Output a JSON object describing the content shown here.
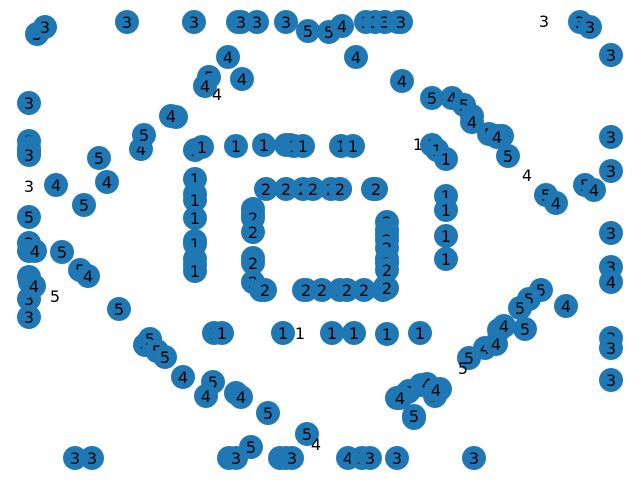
{
  "colors": {
    "node_fill": "#1f77b4",
    "label": "#000000",
    "background": "#ffffff"
  },
  "graph": {
    "type": "network",
    "nodes": [
      {
        "label": "3",
        "type": "node"
      },
      {
        "label": "3",
        "type": "node"
      },
      {
        "label": "3",
        "type": "node"
      },
      {
        "label": "3",
        "type": "node"
      },
      {
        "label": "3",
        "type": "node"
      },
      {
        "label": "3",
        "type": "node"
      },
      {
        "label": "3",
        "type": "node"
      },
      {
        "label": "3",
        "type": "node"
      },
      {
        "label": "3",
        "type": "node"
      },
      {
        "label": "3",
        "type": "node"
      },
      {
        "label": "3",
        "type": "node"
      },
      {
        "label": "3",
        "type": "node"
      },
      {
        "label": "3",
        "type": "node"
      },
      {
        "label": "3",
        "type": "text"
      },
      {
        "label": "3",
        "type": "node"
      },
      {
        "label": "3",
        "type": "node"
      },
      {
        "label": "5",
        "type": "node"
      },
      {
        "label": "5",
        "type": "node"
      },
      {
        "label": "4",
        "type": "node"
      },
      {
        "label": "3",
        "type": "node"
      },
      {
        "label": "4",
        "type": "node"
      },
      {
        "label": "4",
        "type": "node"
      },
      {
        "label": "5",
        "type": "node"
      },
      {
        "label": "4",
        "type": "node"
      },
      {
        "label": "4",
        "type": "node"
      },
      {
        "label": "4",
        "type": "text"
      },
      {
        "label": "4",
        "type": "node"
      },
      {
        "label": "3",
        "type": "node"
      },
      {
        "label": "5",
        "type": "node"
      },
      {
        "label": "4",
        "type": "node"
      },
      {
        "label": "5",
        "type": "node"
      },
      {
        "label": "4",
        "type": "node"
      },
      {
        "label": "4",
        "type": "node"
      },
      {
        "label": "5",
        "type": "node"
      },
      {
        "label": "5",
        "type": "node"
      },
      {
        "label": "5",
        "type": "node"
      },
      {
        "label": "4",
        "type": "node"
      },
      {
        "label": "4",
        "type": "node"
      },
      {
        "label": "4",
        "type": "node"
      },
      {
        "label": "5",
        "type": "node"
      },
      {
        "label": "4",
        "type": "node"
      },
      {
        "label": "5",
        "type": "node"
      },
      {
        "label": "3",
        "type": "node"
      },
      {
        "label": "3",
        "type": "node"
      },
      {
        "label": "3",
        "type": "node"
      },
      {
        "label": "3",
        "type": "node"
      },
      {
        "label": "3",
        "type": "node"
      },
      {
        "label": "3",
        "type": "node"
      },
      {
        "label": "3",
        "type": "node"
      },
      {
        "label": "1",
        "type": "node"
      },
      {
        "label": "1",
        "type": "node"
      },
      {
        "label": "1",
        "type": "node"
      },
      {
        "label": "1",
        "type": "node"
      },
      {
        "label": "1",
        "type": "node"
      },
      {
        "label": "1",
        "type": "node"
      },
      {
        "label": "1",
        "type": "node"
      },
      {
        "label": "1",
        "type": "node"
      },
      {
        "label": "1",
        "type": "node"
      },
      {
        "label": "1",
        "type": "node"
      },
      {
        "label": "1",
        "type": "text"
      },
      {
        "label": "1",
        "type": "node"
      },
      {
        "label": "1",
        "type": "node"
      },
      {
        "label": "1",
        "type": "node"
      },
      {
        "label": "3",
        "type": "text"
      },
      {
        "label": "4",
        "type": "node"
      },
      {
        "label": "4",
        "type": "node"
      },
      {
        "label": "5",
        "type": "node"
      },
      {
        "label": "5",
        "type": "node"
      },
      {
        "label": "4",
        "type": "text"
      },
      {
        "label": "5",
        "type": "node"
      },
      {
        "label": "4",
        "type": "node"
      },
      {
        "label": "5",
        "type": "node"
      },
      {
        "label": "4",
        "type": "node"
      },
      {
        "label": "5",
        "type": "node"
      },
      {
        "label": "2",
        "type": "node"
      },
      {
        "label": "2",
        "type": "node"
      },
      {
        "label": "2",
        "type": "node"
      },
      {
        "label": "2",
        "type": "node"
      },
      {
        "label": "2",
        "type": "node"
      },
      {
        "label": "2",
        "type": "node"
      },
      {
        "label": "2",
        "type": "node"
      },
      {
        "label": "2",
        "type": "node"
      },
      {
        "label": "2",
        "type": "node"
      },
      {
        "label": "1",
        "type": "node"
      },
      {
        "label": "1",
        "type": "node"
      },
      {
        "label": "1",
        "type": "node"
      },
      {
        "label": "1",
        "type": "node"
      },
      {
        "label": "1",
        "type": "node"
      },
      {
        "label": "1",
        "type": "node"
      },
      {
        "label": "1",
        "type": "node"
      },
      {
        "label": "1",
        "type": "node"
      },
      {
        "label": "1",
        "type": "node"
      },
      {
        "label": "1",
        "type": "node"
      },
      {
        "label": "1",
        "type": "node"
      },
      {
        "label": "1",
        "type": "node"
      },
      {
        "label": "1",
        "type": "node"
      },
      {
        "label": "2",
        "type": "node"
      },
      {
        "label": "2",
        "type": "node"
      },
      {
        "label": "2",
        "type": "node"
      },
      {
        "label": "2",
        "type": "node"
      },
      {
        "label": "2",
        "type": "node"
      },
      {
        "label": "2",
        "type": "node"
      },
      {
        "label": "2",
        "type": "node"
      },
      {
        "label": "2",
        "type": "node"
      },
      {
        "label": "2",
        "type": "node"
      },
      {
        "label": "2",
        "type": "node"
      },
      {
        "label": "2",
        "type": "node"
      },
      {
        "label": "2",
        "type": "node"
      },
      {
        "label": "2",
        "type": "node"
      },
      {
        "label": "2",
        "type": "node"
      },
      {
        "label": "2",
        "type": "node"
      },
      {
        "label": "2",
        "type": "node"
      },
      {
        "label": "2",
        "type": "node"
      },
      {
        "label": "2",
        "type": "node"
      },
      {
        "label": "2",
        "type": "node"
      },
      {
        "label": "2",
        "type": "node"
      },
      {
        "label": "2",
        "type": "node"
      },
      {
        "label": "2",
        "type": "node"
      },
      {
        "label": "2",
        "type": "node"
      },
      {
        "label": "2",
        "type": "node"
      },
      {
        "label": "2",
        "type": "node"
      },
      {
        "label": "2",
        "type": "node"
      },
      {
        "label": "3",
        "type": "node"
      },
      {
        "label": "3",
        "type": "node"
      },
      {
        "label": "3",
        "type": "node"
      },
      {
        "label": "4",
        "type": "node"
      },
      {
        "label": "5",
        "type": "node"
      },
      {
        "label": "3",
        "type": "node"
      },
      {
        "label": "5",
        "type": "text"
      },
      {
        "label": "3",
        "type": "node"
      },
      {
        "label": "3",
        "type": "node"
      },
      {
        "label": "3",
        "type": "node"
      },
      {
        "label": "5",
        "type": "node"
      },
      {
        "label": "4",
        "type": "node"
      },
      {
        "label": "5",
        "type": "node"
      },
      {
        "label": "4",
        "type": "node"
      },
      {
        "label": "4",
        "type": "node"
      },
      {
        "label": "5",
        "type": "node"
      },
      {
        "label": "5",
        "type": "node"
      },
      {
        "label": "4",
        "type": "node"
      },
      {
        "label": "5",
        "type": "node"
      },
      {
        "label": "4",
        "type": "node"
      },
      {
        "label": "4",
        "type": "node"
      },
      {
        "label": "5",
        "type": "node"
      },
      {
        "label": "5",
        "type": "node"
      },
      {
        "label": "4",
        "type": "node"
      },
      {
        "label": "5",
        "type": "node"
      },
      {
        "label": "5",
        "type": "node"
      },
      {
        "label": "1",
        "type": "node"
      },
      {
        "label": "1",
        "type": "node"
      },
      {
        "label": "1",
        "type": "node"
      },
      {
        "label": "1",
        "type": "text"
      },
      {
        "label": "1",
        "type": "node"
      },
      {
        "label": "1",
        "type": "node"
      },
      {
        "label": "1",
        "type": "node"
      },
      {
        "label": "1",
        "type": "node"
      },
      {
        "label": "5",
        "type": "node"
      },
      {
        "label": "4",
        "type": "node"
      },
      {
        "label": "4",
        "type": "node"
      },
      {
        "label": "5",
        "type": "node"
      },
      {
        "label": "4",
        "type": "node"
      },
      {
        "label": "5",
        "type": "node"
      },
      {
        "label": "4",
        "type": "node"
      },
      {
        "label": "4",
        "type": "node"
      },
      {
        "label": "5",
        "type": "text"
      },
      {
        "label": "4",
        "type": "node"
      },
      {
        "label": "5",
        "type": "node"
      },
      {
        "label": "3",
        "type": "node"
      },
      {
        "label": "3",
        "type": "node"
      },
      {
        "label": "3",
        "type": "node"
      },
      {
        "label": "5",
        "type": "node"
      },
      {
        "label": "4",
        "type": "node"
      },
      {
        "label": "4",
        "type": "node"
      },
      {
        "label": "5",
        "type": "node"
      },
      {
        "label": "5",
        "type": "node"
      },
      {
        "label": "5",
        "type": "node"
      },
      {
        "label": "4",
        "type": "node"
      },
      {
        "label": "5",
        "type": "node"
      },
      {
        "label": "4",
        "type": "node"
      },
      {
        "label": "5",
        "type": "node"
      },
      {
        "label": "4",
        "type": "node"
      },
      {
        "label": "4",
        "type": "node"
      },
      {
        "label": "5",
        "type": "node"
      },
      {
        "label": "5",
        "type": "node"
      },
      {
        "label": "4",
        "type": "text"
      },
      {
        "label": "3",
        "type": "node"
      },
      {
        "label": "3",
        "type": "node"
      },
      {
        "label": "3",
        "type": "node"
      },
      {
        "label": "3",
        "type": "node"
      },
      {
        "label": "3",
        "type": "node"
      },
      {
        "label": "4",
        "type": "node"
      },
      {
        "label": "3",
        "type": "node"
      },
      {
        "label": "4",
        "type": "node"
      },
      {
        "label": "5",
        "type": "node"
      },
      {
        "label": "3",
        "type": "node"
      },
      {
        "label": "3",
        "type": "node"
      },
      {
        "label": "3",
        "type": "node"
      }
    ]
  }
}
